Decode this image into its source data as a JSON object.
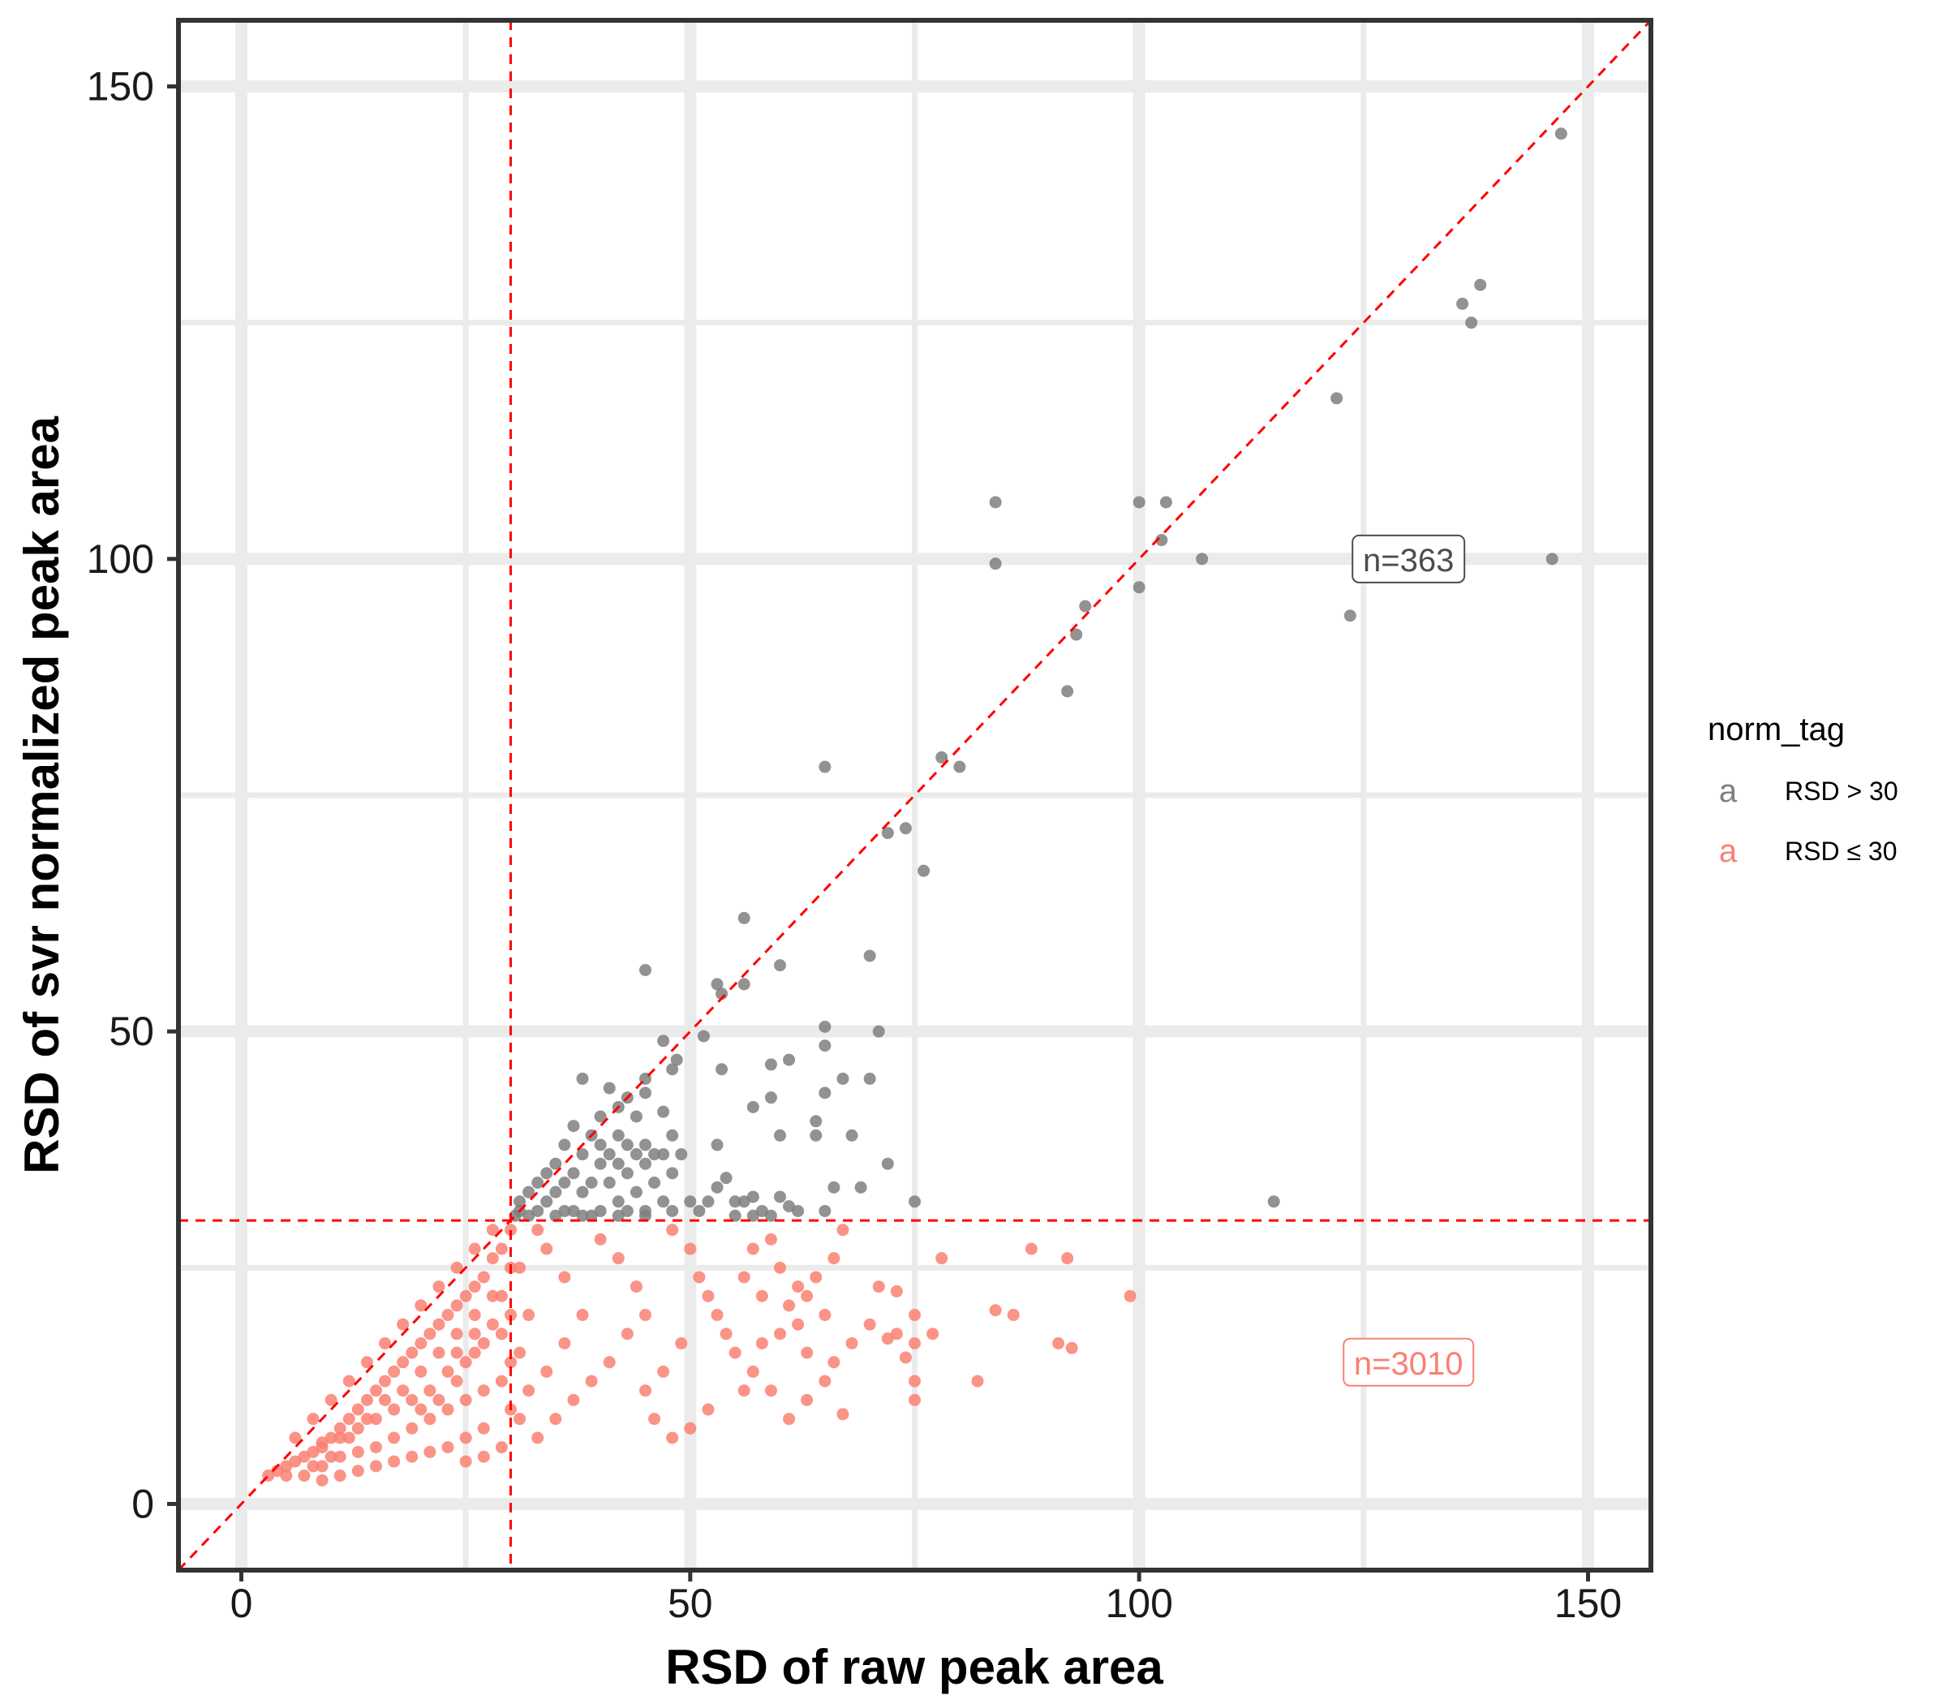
{
  "chart_data": {
    "type": "scatter",
    "title": "",
    "xlabel": "RSD of raw peak area",
    "ylabel": "RSD of svr normalized peak area",
    "xlim": [
      -7,
      157
    ],
    "ylim": [
      -7,
      157
    ],
    "x_ticks": [
      0,
      50,
      100,
      150
    ],
    "y_ticks": [
      0,
      50,
      100,
      150
    ],
    "x_tick_labels": [
      "0",
      "50",
      "100",
      "150"
    ],
    "y_tick_labels": [
      "0",
      "50",
      "100",
      "150"
    ],
    "grid": true,
    "legend_position": "right",
    "legend": {
      "title": "norm_tag",
      "key_glyph": "a",
      "entries": [
        {
          "label": "RSD > 30",
          "color": "#7f7f7f"
        },
        {
          "label": "RSD ≤ 30",
          "color": "#fa8072"
        }
      ]
    },
    "reference_lines": {
      "vertical_x": 30,
      "horizontal_y": 30,
      "diagonal": "y = x",
      "color": "#ff0000",
      "style": "dashed"
    },
    "annotations": [
      {
        "text": "n=363",
        "x": 130,
        "y": 100,
        "color": "#4d4d4d"
      },
      {
        "text": "n=3010",
        "x": 130,
        "y": 15,
        "color": "#fa8072"
      }
    ],
    "series": [
      {
        "name": "RSD > 30",
        "color": "#7f7f7f",
        "points": [
          [
            147,
            145
          ],
          [
            138,
            129
          ],
          [
            136,
            127
          ],
          [
            137,
            125
          ],
          [
            122,
            117
          ],
          [
            84,
            106
          ],
          [
            100,
            106
          ],
          [
            103,
            106
          ],
          [
            102.5,
            102
          ],
          [
            84,
            99.5
          ],
          [
            107,
            100
          ],
          [
            146,
            100
          ],
          [
            100,
            97
          ],
          [
            123.5,
            94
          ],
          [
            94,
            95
          ],
          [
            93,
            92
          ],
          [
            92,
            86
          ],
          [
            65,
            78
          ],
          [
            78,
            79
          ],
          [
            80,
            78
          ],
          [
            72,
            71
          ],
          [
            74,
            71.5
          ],
          [
            76,
            67
          ],
          [
            56,
            62
          ],
          [
            70,
            58
          ],
          [
            45,
            56.5
          ],
          [
            60,
            57
          ],
          [
            53,
            55
          ],
          [
            56,
            55
          ],
          [
            53.5,
            54
          ],
          [
            65,
            50.5
          ],
          [
            71,
            50
          ],
          [
            47,
            49
          ],
          [
            51.5,
            49.5
          ],
          [
            65,
            48.5
          ],
          [
            48.5,
            47
          ],
          [
            61,
            47
          ],
          [
            53.5,
            46
          ],
          [
            59,
            46.5
          ],
          [
            70,
            45
          ],
          [
            38,
            45
          ],
          [
            45,
            45
          ],
          [
            67,
            45
          ],
          [
            48,
            46
          ],
          [
            45,
            43.5
          ],
          [
            41,
            44
          ],
          [
            43,
            43
          ],
          [
            65,
            43.5
          ],
          [
            59,
            43
          ],
          [
            57,
            42
          ],
          [
            42,
            42
          ],
          [
            40,
            41
          ],
          [
            44,
            41
          ],
          [
            47,
            41.5
          ],
          [
            64,
            40.5
          ],
          [
            37,
            40
          ],
          [
            39,
            39
          ],
          [
            42,
            39
          ],
          [
            45,
            38
          ],
          [
            48,
            39
          ],
          [
            60,
            39
          ],
          [
            64,
            39
          ],
          [
            68,
            39
          ],
          [
            40,
            38
          ],
          [
            43,
            38
          ],
          [
            53,
            38
          ],
          [
            46,
            37
          ],
          [
            36,
            38
          ],
          [
            38,
            37
          ],
          [
            41,
            37
          ],
          [
            44,
            37
          ],
          [
            47,
            37
          ],
          [
            49,
            37
          ],
          [
            72,
            36
          ],
          [
            35,
            36
          ],
          [
            40,
            36
          ],
          [
            42,
            36
          ],
          [
            45,
            36
          ],
          [
            48,
            35
          ],
          [
            34,
            35
          ],
          [
            37,
            35
          ],
          [
            39,
            34
          ],
          [
            43,
            35
          ],
          [
            46,
            34
          ],
          [
            54,
            34.5
          ],
          [
            33,
            34
          ],
          [
            36,
            34
          ],
          [
            41,
            34
          ],
          [
            44,
            33
          ],
          [
            53,
            33.5
          ],
          [
            66,
            33.5
          ],
          [
            69,
            33.5
          ],
          [
            32,
            33
          ],
          [
            35,
            33
          ],
          [
            38,
            33
          ],
          [
            42,
            32
          ],
          [
            47,
            32
          ],
          [
            57,
            32.5
          ],
          [
            60,
            32.5
          ],
          [
            55,
            32
          ],
          [
            31,
            32
          ],
          [
            34,
            32
          ],
          [
            37,
            31
          ],
          [
            40,
            31
          ],
          [
            43,
            31
          ],
          [
            45,
            31
          ],
          [
            50,
            32
          ],
          [
            52,
            32
          ],
          [
            56,
            32
          ],
          [
            58,
            31
          ],
          [
            61,
            31.5
          ],
          [
            75,
            32
          ],
          [
            115,
            32
          ],
          [
            31,
            31
          ],
          [
            33,
            31
          ],
          [
            36,
            31
          ],
          [
            39,
            30.5
          ],
          [
            42,
            30.5
          ],
          [
            45,
            30.5
          ],
          [
            48,
            31
          ],
          [
            51,
            31
          ],
          [
            55,
            30.5
          ],
          [
            57,
            30.5
          ],
          [
            59,
            30.5
          ],
          [
            62,
            31
          ],
          [
            65,
            31
          ],
          [
            30.5,
            30.5
          ],
          [
            32,
            30.5
          ],
          [
            35,
            30.5
          ],
          [
            38,
            30.5
          ]
        ]
      },
      {
        "name": "RSD ≤ 30",
        "color": "#fa8072",
        "points": [
          [
            99,
            22
          ],
          [
            92,
            26
          ],
          [
            88,
            27
          ],
          [
            78,
            26
          ],
          [
            86,
            20
          ],
          [
            84,
            20.5
          ],
          [
            77,
            18
          ],
          [
            73,
            22.5
          ],
          [
            71,
            23
          ],
          [
            75,
            20
          ],
          [
            70,
            19
          ],
          [
            73,
            18
          ],
          [
            75,
            17
          ],
          [
            72,
            17.5
          ],
          [
            74,
            15.5
          ],
          [
            75,
            13
          ],
          [
            75,
            11
          ],
          [
            82,
            13
          ],
          [
            91,
            17
          ],
          [
            92.5,
            16.5
          ],
          [
            67,
            29
          ],
          [
            66,
            26
          ],
          [
            64,
            24
          ],
          [
            62,
            23
          ],
          [
            61,
            21
          ],
          [
            63,
            22
          ],
          [
            60,
            25
          ],
          [
            59,
            28
          ],
          [
            57,
            27
          ],
          [
            56,
            24
          ],
          [
            58,
            22
          ],
          [
            65,
            20
          ],
          [
            62,
            19
          ],
          [
            60,
            18
          ],
          [
            58,
            17
          ],
          [
            63,
            16
          ],
          [
            66,
            15
          ],
          [
            68,
            17
          ],
          [
            65,
            13
          ],
          [
            67,
            9.5
          ],
          [
            61,
            9
          ],
          [
            63,
            11
          ],
          [
            59,
            12
          ],
          [
            57,
            14
          ],
          [
            55,
            16
          ],
          [
            53,
            20
          ],
          [
            51,
            24
          ],
          [
            50,
            27
          ],
          [
            48,
            29
          ],
          [
            52,
            22
          ],
          [
            54,
            18
          ],
          [
            56,
            12
          ],
          [
            52,
            10
          ],
          [
            50,
            8
          ],
          [
            48,
            7
          ],
          [
            46,
            9
          ],
          [
            45,
            12
          ],
          [
            47,
            14
          ],
          [
            49,
            17
          ],
          [
            45,
            20
          ],
          [
            44,
            23
          ],
          [
            42,
            26
          ],
          [
            40,
            28
          ],
          [
            43,
            18
          ],
          [
            41,
            15
          ],
          [
            39,
            13
          ],
          [
            37,
            11
          ],
          [
            35,
            9
          ],
          [
            33,
            7
          ],
          [
            38,
            20
          ],
          [
            36,
            24
          ],
          [
            34,
            27
          ],
          [
            33,
            29
          ],
          [
            36,
            17
          ],
          [
            34,
            14
          ],
          [
            32,
            12
          ],
          [
            31,
            9
          ],
          [
            31,
            16
          ],
          [
            32,
            20
          ],
          [
            31,
            25
          ],
          [
            3,
            3
          ],
          [
            4,
            3.5
          ],
          [
            5,
            4
          ],
          [
            6,
            4.5
          ],
          [
            7,
            5
          ],
          [
            8,
            5.5
          ],
          [
            9,
            6
          ],
          [
            10,
            7
          ],
          [
            11,
            8
          ],
          [
            12,
            9
          ],
          [
            13,
            10
          ],
          [
            14,
            11
          ],
          [
            15,
            12
          ],
          [
            16,
            13
          ],
          [
            17,
            14
          ],
          [
            18,
            15
          ],
          [
            19,
            16
          ],
          [
            20,
            17
          ],
          [
            21,
            18
          ],
          [
            22,
            19
          ],
          [
            23,
            20
          ],
          [
            24,
            21
          ],
          [
            25,
            22
          ],
          [
            26,
            23
          ],
          [
            27,
            24
          ],
          [
            28,
            26
          ],
          [
            29,
            27
          ],
          [
            30,
            29
          ],
          [
            28,
            29
          ],
          [
            26,
            27
          ],
          [
            24,
            25
          ],
          [
            22,
            23
          ],
          [
            20,
            21
          ],
          [
            18,
            19
          ],
          [
            16,
            17
          ],
          [
            14,
            15
          ],
          [
            12,
            13
          ],
          [
            10,
            11
          ],
          [
            8,
            9
          ],
          [
            6,
            7
          ],
          [
            5,
            3
          ],
          [
            7,
            3
          ],
          [
            9,
            4
          ],
          [
            11,
            5
          ],
          [
            13,
            5.5
          ],
          [
            15,
            6
          ],
          [
            17,
            7
          ],
          [
            19,
            8
          ],
          [
            21,
            9
          ],
          [
            23,
            10
          ],
          [
            25,
            11
          ],
          [
            27,
            12
          ],
          [
            29,
            13
          ],
          [
            29,
            18
          ],
          [
            29,
            22
          ],
          [
            27,
            17
          ],
          [
            25,
            15
          ],
          [
            23,
            14
          ],
          [
            21,
            12
          ],
          [
            19,
            11
          ],
          [
            17,
            10
          ],
          [
            15,
            9
          ],
          [
            13,
            8
          ],
          [
            11,
            7
          ],
          [
            9,
            6.5
          ],
          [
            27,
            8
          ],
          [
            25,
            7
          ],
          [
            23,
            6
          ],
          [
            21,
            5.5
          ],
          [
            19,
            5
          ],
          [
            17,
            4.5
          ],
          [
            15,
            4
          ],
          [
            13,
            3.5
          ],
          [
            11,
            3
          ],
          [
            9,
            2.5
          ],
          [
            20,
            14
          ],
          [
            22,
            16
          ],
          [
            24,
            18
          ],
          [
            26,
            20
          ],
          [
            28,
            22
          ],
          [
            26,
            16
          ],
          [
            24,
            13
          ],
          [
            22,
            11
          ],
          [
            20,
            10
          ],
          [
            18,
            12
          ],
          [
            16,
            11
          ],
          [
            14,
            9
          ],
          [
            12,
            7
          ],
          [
            10,
            5
          ],
          [
            8,
            4
          ],
          [
            29,
            6
          ],
          [
            27,
            5
          ],
          [
            25,
            4.5
          ],
          [
            30,
            10
          ],
          [
            30,
            15
          ],
          [
            30,
            20
          ],
          [
            30,
            25
          ],
          [
            28,
            19
          ],
          [
            26,
            18
          ],
          [
            24,
            16
          ]
        ]
      }
    ]
  }
}
